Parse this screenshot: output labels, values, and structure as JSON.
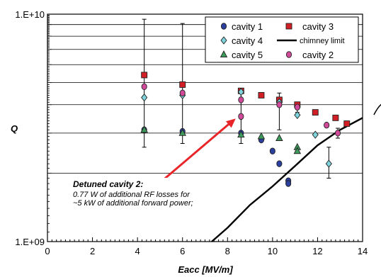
{
  "chart_data": {
    "type": "scatter",
    "title": "",
    "xlabel": "Eacc [MV/m]",
    "ylabel": "Q",
    "xlim": [
      0,
      14
    ],
    "ylim": [
      1000000000,
      10000000000
    ],
    "yscale": "log",
    "x_ticks": [
      "0",
      "2",
      "4",
      "6",
      "8",
      "10",
      "12",
      "14"
    ],
    "y_ticks": [
      "1.E+09",
      "1.E+10"
    ],
    "grid": "horizontal",
    "legend_position": "top-right",
    "series": [
      {
        "name": "cavity 1",
        "marker": "circle",
        "color": "#2b3f9e",
        "points": [
          {
            "x": 4.3,
            "y": 3100000000
          },
          {
            "x": 6.0,
            "y": 3050000000
          },
          {
            "x": 8.6,
            "y": 3000000000
          },
          {
            "x": 9.5,
            "y": 2800000000
          },
          {
            "x": 10.0,
            "y": 2500000000
          },
          {
            "x": 10.3,
            "y": 2200000000
          },
          {
            "x": 10.7,
            "y": 1850000000
          },
          {
            "x": 10.7,
            "y": 1800000000
          }
        ]
      },
      {
        "name": "cavity 3",
        "marker": "square",
        "color": "#d21f26",
        "points": [
          {
            "x": 4.3,
            "y": 5400000000
          },
          {
            "x": 6.0,
            "y": 4900000000
          },
          {
            "x": 8.6,
            "y": 4600000000
          },
          {
            "x": 9.5,
            "y": 4400000000
          },
          {
            "x": 10.3,
            "y": 4200000000
          },
          {
            "x": 11.1,
            "y": 4000000000
          },
          {
            "x": 11.9,
            "y": 3700000000
          },
          {
            "x": 12.8,
            "y": 3500000000
          },
          {
            "x": 13.3,
            "y": 3300000000
          }
        ]
      },
      {
        "name": "cavity 4",
        "marker": "diamond",
        "color": "#7fd3dc",
        "points": [
          {
            "x": 4.3,
            "y": 4300000000
          },
          {
            "x": 6.0,
            "y": 4400000000
          },
          {
            "x": 8.6,
            "y": 4550000000
          },
          {
            "x": 10.3,
            "y": 4100000000
          },
          {
            "x": 11.1,
            "y": 3600000000
          },
          {
            "x": 11.9,
            "y": 2950000000
          },
          {
            "x": 12.5,
            "y": 2200000000
          }
        ]
      },
      {
        "name": "cavity 5",
        "marker": "triangle",
        "color": "#3d9b5b",
        "points": [
          {
            "x": 4.3,
            "y": 3100000000
          },
          {
            "x": 6.0,
            "y": 3000000000
          },
          {
            "x": 8.6,
            "y": 2950000000
          },
          {
            "x": 9.5,
            "y": 2900000000
          },
          {
            "x": 10.3,
            "y": 2850000000
          },
          {
            "x": 11.1,
            "y": 2600000000
          },
          {
            "x": 11.1,
            "y": 2500000000
          }
        ]
      },
      {
        "name": "cavity 2",
        "marker": "circle",
        "color": "#d14a9a",
        "points": [
          {
            "x": 4.3,
            "y": 4800000000
          },
          {
            "x": 6.0,
            "y": 4500000000
          },
          {
            "x": 8.6,
            "y": 4200000000
          },
          {
            "x": 8.6,
            "y": 3550000000
          },
          {
            "x": 10.3,
            "y": 4000000000
          },
          {
            "x": 11.1,
            "y": 3900000000
          },
          {
            "x": 12.4,
            "y": 3250000000
          },
          {
            "x": 12.9,
            "y": 3000000000
          }
        ]
      },
      {
        "name": "chimney limit",
        "marker": "line",
        "color": "#000000",
        "points": [
          {
            "x": 7.3,
            "y": 1000000000
          },
          {
            "x": 8.0,
            "y": 1150000000
          },
          {
            "x": 9.0,
            "y": 1450000000
          },
          {
            "x": 10.0,
            "y": 1750000000
          },
          {
            "x": 11.0,
            "y": 2150000000
          },
          {
            "x": 12.0,
            "y": 2650000000
          },
          {
            "x": 13.0,
            "y": 3100000000
          },
          {
            "x": 14.0,
            "y": 3500000000
          }
        ]
      }
    ],
    "error_bars": [
      {
        "x": 4.3,
        "low": 2600000000,
        "high": 9500000000
      },
      {
        "x": 6.0,
        "low": 2700000000,
        "high": 9100000000
      },
      {
        "x": 8.6,
        "low": 2700000000,
        "high": 4700000000
      },
      {
        "x": 10.3,
        "low": 3100000000,
        "high": 4500000000
      },
      {
        "x": 11.1,
        "low": 3700000000,
        "high": 4100000000
      },
      {
        "x": 12.5,
        "low": 1900000000,
        "high": 2600000000
      },
      {
        "x": 12.9,
        "low": 2850000000,
        "high": 3150000000
      }
    ],
    "annotations": [
      {
        "title": "Detuned cavity 2:",
        "lines": [
          "0.77 W of additional RF losses for",
          "~5 kW of additional forward power;"
        ],
        "arrow_to": {
          "x": 8.55,
          "y": 3550000000
        },
        "arrow_color": "#e8262a"
      }
    ]
  }
}
